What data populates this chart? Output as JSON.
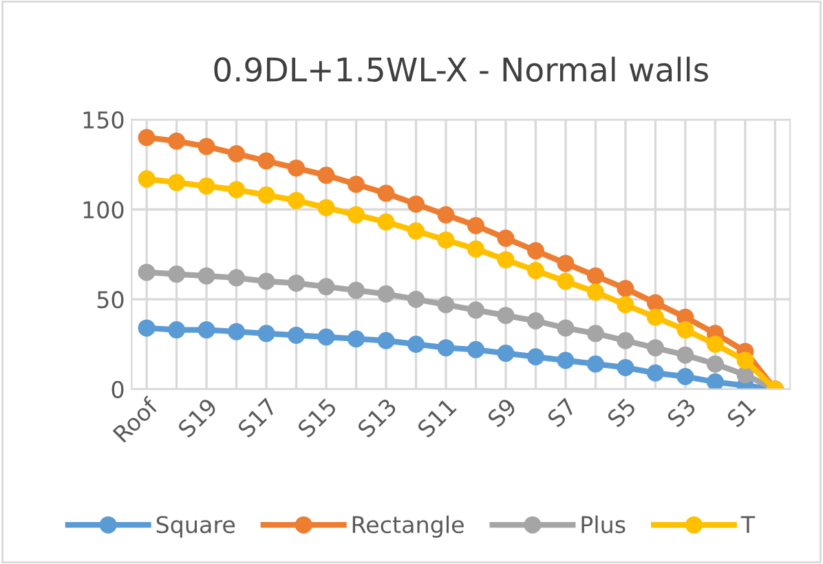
{
  "chart_data": {
    "type": "line",
    "title": "0.9DL+1.5WL-X - Normal walls",
    "categories": [
      "Roof",
      null,
      "S19",
      null,
      "S17",
      null,
      "S15",
      null,
      "S13",
      null,
      "S11",
      null,
      "S9",
      null,
      "S7",
      null,
      "S5",
      null,
      "S3",
      null,
      "S1",
      null
    ],
    "series": [
      {
        "name": "Square",
        "color": "#5b9bd5",
        "values": [
          34,
          33,
          33,
          32,
          31,
          30,
          29,
          28,
          27,
          25,
          23,
          22,
          20,
          18,
          16,
          14,
          12,
          9,
          7,
          4,
          2,
          0
        ]
      },
      {
        "name": "Rectangle",
        "color": "#ed7d31",
        "values": [
          140,
          138,
          135,
          131,
          127,
          123,
          119,
          114,
          109,
          103,
          97,
          91,
          84,
          77,
          70,
          63,
          56,
          48,
          40,
          31,
          21,
          0
        ]
      },
      {
        "name": "Plus",
        "color": "#a5a5a5",
        "values": [
          65,
          64,
          63,
          62,
          60,
          59,
          57,
          55,
          53,
          50,
          47,
          44,
          41,
          38,
          34,
          31,
          27,
          23,
          19,
          14,
          8,
          0
        ]
      },
      {
        "name": "T",
        "color": "#ffc000",
        "values": [
          117,
          115,
          113,
          111,
          108,
          105,
          101,
          97,
          93,
          88,
          83,
          78,
          72,
          66,
          60,
          54,
          47,
          40,
          33,
          25,
          16,
          0
        ]
      }
    ],
    "ylim": [
      0,
      150
    ],
    "yticks": [
      0,
      50,
      100,
      150
    ],
    "grid": true,
    "legend": "bottom",
    "marker": "circle",
    "line_style": "solid"
  }
}
